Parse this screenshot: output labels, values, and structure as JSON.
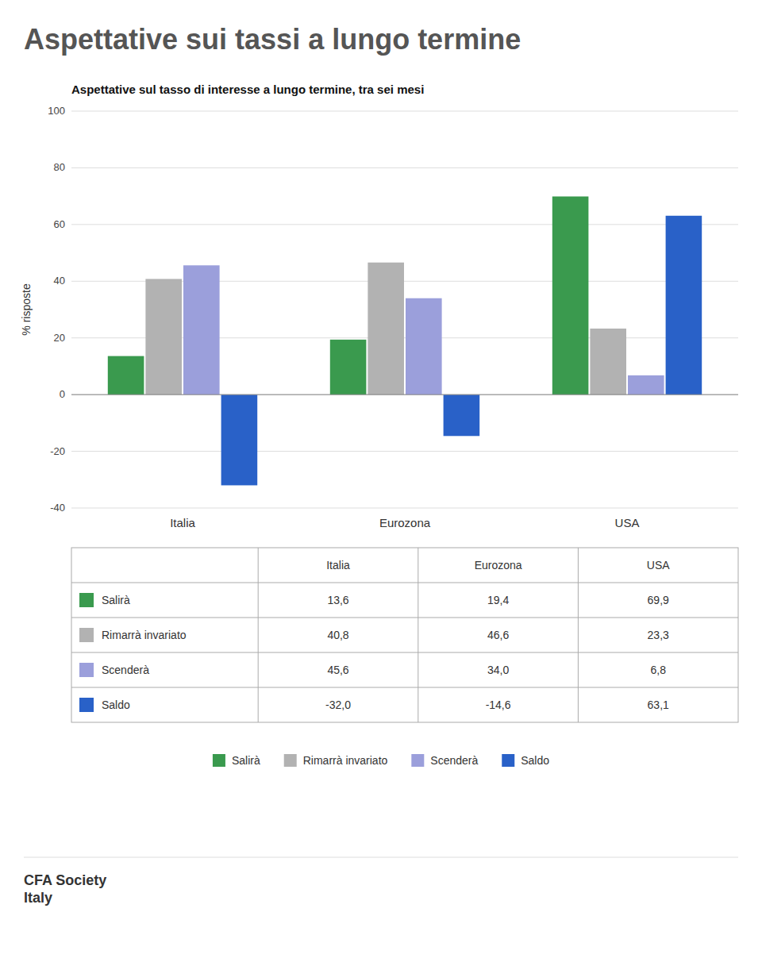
{
  "chart_data": {
    "type": "bar",
    "title": "Aspettative sui tassi a lungo termine",
    "subtitle": "Aspettative sul tasso di interesse a lungo termine, tra sei mesi",
    "ylabel": "% risposte",
    "categories": [
      "Italia",
      "Eurozona",
      "USA"
    ],
    "series": [
      {
        "name": "Salirà",
        "color": "#3a9a4e",
        "values": [
          13.6,
          19.4,
          69.9
        ],
        "value_labels": [
          "13,6",
          "19,4",
          "69,9"
        ]
      },
      {
        "name": "Rimarrà invariato",
        "color": "#b2b2b2",
        "values": [
          40.8,
          46.6,
          23.3
        ],
        "value_labels": [
          "40,8",
          "46,6",
          "23,3"
        ]
      },
      {
        "name": "Scenderà",
        "color": "#9b9fdb",
        "values": [
          45.6,
          34.0,
          6.8
        ],
        "value_labels": [
          "45,6",
          "34,0",
          "6,8"
        ]
      },
      {
        "name": "Saldo",
        "color": "#2961c8",
        "values": [
          -32.0,
          -14.6,
          63.1
        ],
        "value_labels": [
          "-32,0",
          "-14,6",
          "63,1"
        ]
      }
    ],
    "ylim": [
      -40,
      100
    ],
    "yticks": [
      -40,
      -20,
      0,
      20,
      40,
      60,
      80,
      100
    ],
    "grid": true,
    "legend": "bottom",
    "annotations": [
      "CFA Society",
      "Italy"
    ]
  }
}
